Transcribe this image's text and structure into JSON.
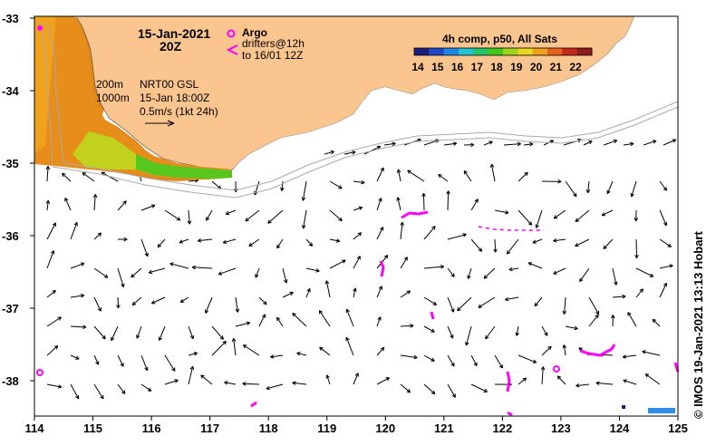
{
  "map": {
    "date_label": "15-Jan-2021",
    "time_label": "20Z",
    "isobath_labels": [
      "200m",
      "1000m"
    ],
    "current_source": "NRT00 GSL",
    "current_time": "15-Jan 18:00Z",
    "scale_label": "0.5m/s (1kt 24h)",
    "argo_label": "Argo",
    "drifters_label_1": "drifters@12h",
    "drifters_label_2": "to 16/01 12Z",
    "sst_legend_title": "4h comp, p50, All Sats",
    "sst_ticks": [
      "14",
      "15",
      "16",
      "17",
      "18",
      "19",
      "20",
      "21",
      "22"
    ],
    "sst_colors": [
      "#1c1f7a",
      "#1f45c8",
      "#1f86e8",
      "#22c4d6",
      "#27c56a",
      "#41c81d",
      "#9fd41c",
      "#e9d91c",
      "#f0a21c",
      "#e5621d",
      "#c42a1c",
      "#8e1c1c"
    ],
    "lon_ticks": [
      "114",
      "115",
      "116",
      "117",
      "118",
      "119",
      "120",
      "121",
      "122",
      "123",
      "124",
      "125"
    ],
    "lat_ticks": [
      "-33",
      "-34",
      "-35",
      "-36",
      "-37",
      "-38"
    ],
    "credit": "© IMOS 19-Jan-2021 13:13 Hobart",
    "land_color": "#fbc590",
    "drifter_color": "#ff00ff"
  }
}
